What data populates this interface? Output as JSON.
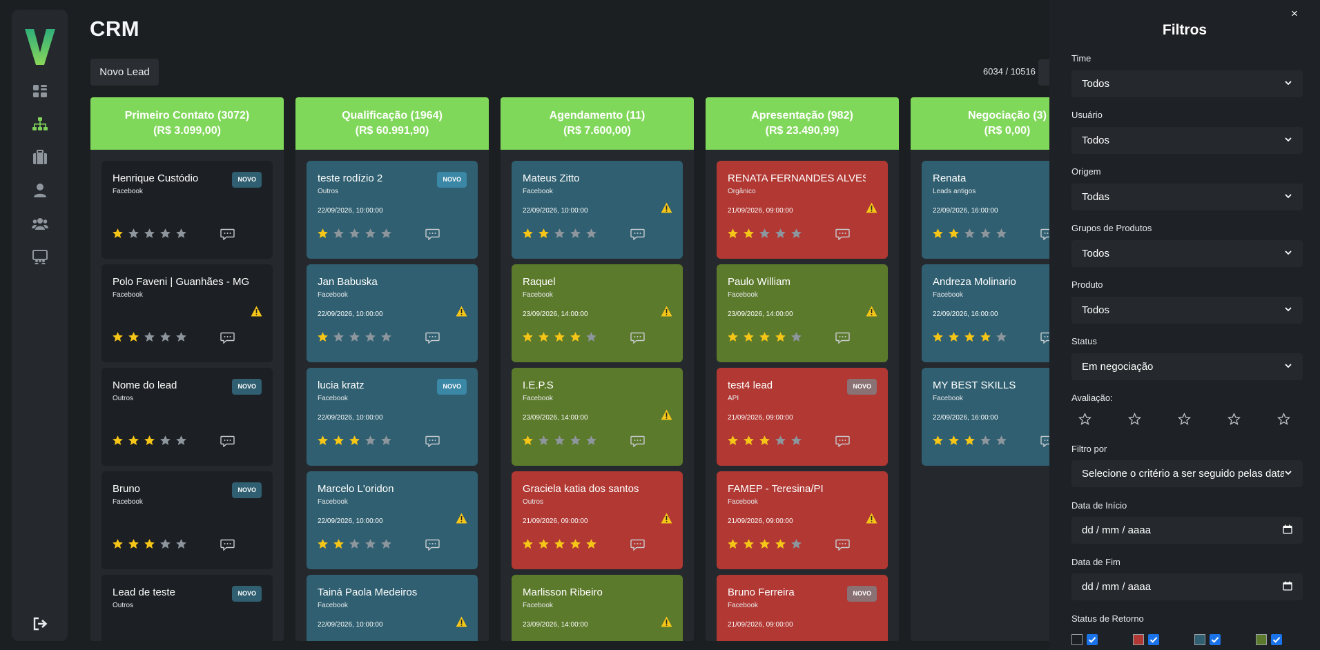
{
  "header": {
    "title": "CRM",
    "new_lead_label": "Novo Lead",
    "counter": "6034 / 10516"
  },
  "colors": {
    "column_header": "#80d85a",
    "card_dark": "#1c1f23",
    "card_blue": "#2f5f70",
    "card_green": "#5c7a2c",
    "card_red": "#b13833",
    "star_on": "#f5c518",
    "star_off": "#8d959d",
    "warn": "#f5c518"
  },
  "sidebar": {
    "items": [
      {
        "icon": "dashboard-icon"
      },
      {
        "icon": "sitemap-icon",
        "active": true
      },
      {
        "icon": "briefcase-icon"
      },
      {
        "icon": "user-icon"
      },
      {
        "icon": "users-icon"
      },
      {
        "icon": "chalkboard-icon"
      }
    ],
    "logout_icon": "sign-out-icon"
  },
  "columns": [
    {
      "title": "Primeiro Contato (3072)",
      "total": "(R$ 3.099,00)",
      "cards": [
        {
          "name": "Henrique Custódio",
          "origin": "Facebook",
          "date": "",
          "rating": 1,
          "badge": "NOVO",
          "warning": false,
          "color": "dark"
        },
        {
          "name": "Polo Faveni | Guanhães - MG",
          "origin": "Facebook",
          "date": "",
          "rating": 2,
          "badge": "",
          "warning": true,
          "color": "dark"
        },
        {
          "name": "Nome do lead",
          "origin": "Outros",
          "date": "",
          "rating": 3,
          "badge": "NOVO",
          "warning": false,
          "color": "dark"
        },
        {
          "name": "Bruno",
          "origin": "Facebook",
          "date": "",
          "rating": 3,
          "badge": "NOVO",
          "warning": false,
          "color": "dark"
        },
        {
          "name": "Lead de teste",
          "origin": "Outros",
          "date": "",
          "rating": 0,
          "badge": "NOVO",
          "warning": false,
          "color": "dark"
        }
      ]
    },
    {
      "title": "Qualificação (1964)",
      "total": "(R$ 60.991,90)",
      "cards": [
        {
          "name": "teste rodízio 2",
          "origin": "Outros",
          "date": "22/09/2026, 10:00:00",
          "rating": 1,
          "badge": "NOVO",
          "warning": false,
          "color": "blue"
        },
        {
          "name": "Jan Babuska",
          "origin": "Facebook",
          "date": "22/09/2026, 10:00:00",
          "rating": 1,
          "badge": "",
          "warning": true,
          "color": "blue"
        },
        {
          "name": "lucia kratz",
          "origin": "Facebook",
          "date": "22/09/2026, 10:00:00",
          "rating": 3,
          "badge": "NOVO",
          "warning": false,
          "color": "blue"
        },
        {
          "name": "  Marcelo L'oridon",
          "origin": "Facebook",
          "date": "22/09/2026, 10:00:00",
          "rating": 2,
          "badge": "",
          "warning": true,
          "color": "blue"
        },
        {
          "name": "Tainá Paola Medeiros",
          "origin": "Facebook",
          "date": "22/09/2026, 10:00:00",
          "rating": 0,
          "badge": "",
          "warning": true,
          "color": "blue"
        }
      ]
    },
    {
      "title": "Agendamento (11)",
      "total": "(R$ 7.600,00)",
      "cards": [
        {
          "name": "Mateus Zitto",
          "origin": "Facebook",
          "date": "22/09/2026, 10:00:00",
          "rating": 2,
          "badge": "",
          "warning": true,
          "color": "blue"
        },
        {
          "name": "Raquel",
          "origin": "Facebook",
          "date": "23/09/2026, 14:00:00",
          "rating": 4,
          "badge": "",
          "warning": true,
          "color": "green"
        },
        {
          "name": "I.E.P.S",
          "origin": "Facebook",
          "date": "23/09/2026, 14:00:00",
          "rating": 1,
          "badge": "",
          "warning": true,
          "color": "green"
        },
        {
          "name": "Graciela katia dos santos",
          "origin": "Outros",
          "date": "21/09/2026, 09:00:00",
          "rating": 5,
          "badge": "",
          "warning": true,
          "color": "red"
        },
        {
          "name": "Marlisson Ribeiro",
          "origin": "Facebook",
          "date": "23/09/2026, 14:00:00",
          "rating": 0,
          "badge": "",
          "warning": true,
          "color": "green"
        }
      ]
    },
    {
      "title": "Apresentação (982)",
      "total": "(R$ 23.490,99)",
      "cards": [
        {
          "name": "RENATA FERNANDES ALVES",
          "origin": "Orgânico",
          "date": "21/09/2026, 09:00:00",
          "rating": 2,
          "badge": "",
          "warning": true,
          "color": "red"
        },
        {
          "name": "Paulo William",
          "origin": "Facebook",
          "date": "23/09/2026, 14:00:00",
          "rating": 4,
          "badge": "",
          "warning": true,
          "color": "green"
        },
        {
          "name": "test4 lead",
          "origin": "API",
          "date": "21/09/2026, 09:00:00",
          "rating": 3,
          "badge": "NOVO",
          "warning": false,
          "color": "red"
        },
        {
          "name": "FAMEP - Teresina/PI",
          "origin": "Facebook",
          "date": "21/09/2026, 09:00:00",
          "rating": 4,
          "badge": "",
          "warning": true,
          "color": "red"
        },
        {
          "name": "Bruno Ferreira",
          "origin": "Facebook",
          "date": "21/09/2026, 09:00:00",
          "rating": 0,
          "badge": "NOVO",
          "warning": false,
          "color": "red"
        }
      ]
    },
    {
      "title": "Negociação (3)",
      "total": "(R$ 0,00)",
      "cards": [
        {
          "name": "Renata",
          "origin": "Leads antigos",
          "date": "22/09/2026, 16:00:00",
          "rating": 2,
          "badge": "",
          "warning": false,
          "color": "blue"
        },
        {
          "name": "Andreza Molinario",
          "origin": "Facebook",
          "date": "22/09/2026, 16:00:00",
          "rating": 4,
          "badge": "",
          "warning": false,
          "color": "blue"
        },
        {
          "name": "MY BEST SKILLS",
          "origin": "Facebook",
          "date": "22/09/2026, 16:00:00",
          "rating": 3,
          "badge": "",
          "warning": false,
          "color": "blue"
        }
      ]
    }
  ],
  "filters": {
    "title": "Filtros",
    "close": "×",
    "fields": [
      {
        "label": "Time",
        "value": "Todos"
      },
      {
        "label": "Usuário",
        "value": "Todos"
      },
      {
        "label": "Origem",
        "value": "Todas"
      },
      {
        "label": "Grupos de Produtos",
        "value": "Todos"
      },
      {
        "label": "Produto",
        "value": "Todos"
      },
      {
        "label": "Status",
        "value": "Em negociação"
      }
    ],
    "rating_label": "Avaliação:",
    "filter_by_label": "Filtro por",
    "filter_by_placeholder": "Selecione o critério a ser seguido pelas datas",
    "start_date_label": "Data de Início",
    "end_date_label": "Data de Fim",
    "date_placeholder": "dd / mm / aaaa",
    "return_status_label": "Status de Retorno",
    "return_status": [
      {
        "color": "#1c1f23",
        "checked": true
      },
      {
        "color": "#b13833",
        "checked": true
      },
      {
        "color": "#2f5f70",
        "checked": true
      },
      {
        "color": "#5c7a2c",
        "checked": true
      }
    ]
  }
}
